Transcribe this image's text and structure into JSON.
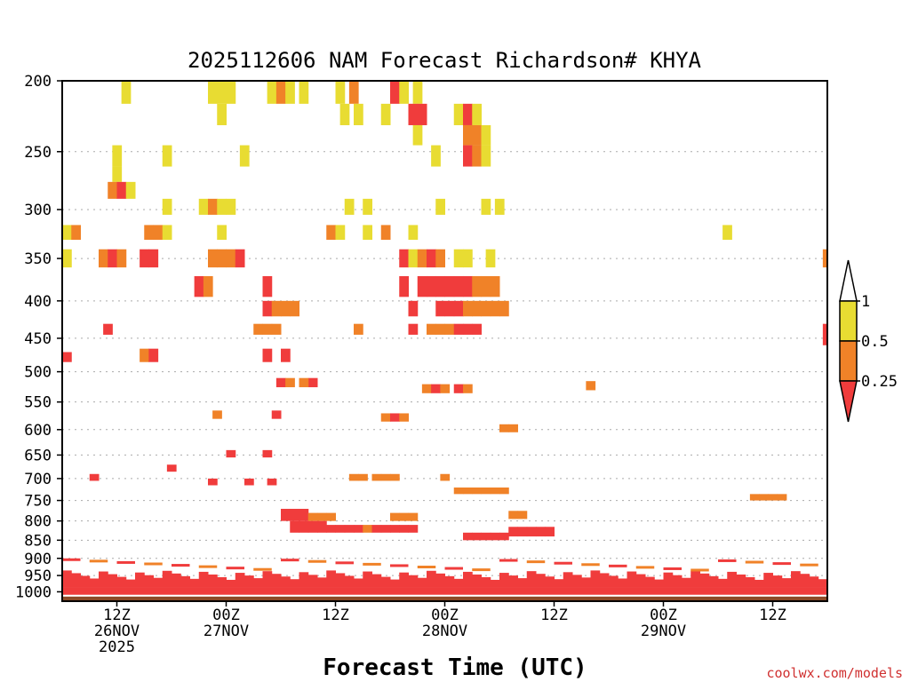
{
  "chart_data": {
    "type": "heatmap",
    "title": "2025112606 NAM Forecast Richardson# KHYA",
    "xlabel": "Forecast Time (UTC)",
    "ylabel": "",
    "y_scale": "log-pressure",
    "ylim": [
      1030,
      200
    ],
    "y_ticks": [
      200,
      250,
      300,
      350,
      400,
      450,
      500,
      550,
      600,
      650,
      700,
      750,
      800,
      850,
      900,
      950,
      1000
    ],
    "y_tick_labels": [
      "200",
      "250",
      "300",
      "350",
      "400",
      "450",
      "500",
      "550",
      "600",
      "650",
      "700",
      "750",
      "800",
      "850",
      "900",
      "950",
      "1000"
    ],
    "xlim": [
      0,
      84
    ],
    "x_ticks": [
      {
        "hour": 6,
        "lines": [
          "12Z",
          "26NOV",
          "2025"
        ]
      },
      {
        "hour": 18,
        "lines": [
          "00Z",
          "27NOV"
        ]
      },
      {
        "hour": 30,
        "lines": [
          "12Z"
        ]
      },
      {
        "hour": 42,
        "lines": [
          "00Z",
          "28NOV"
        ]
      },
      {
        "hour": 54,
        "lines": [
          "12Z"
        ]
      },
      {
        "hour": 66,
        "lines": [
          "00Z",
          "29NOV"
        ]
      },
      {
        "hour": 78,
        "lines": [
          "12Z"
        ]
      }
    ],
    "legend": {
      "position": "right",
      "labels": [
        "1",
        "0.5",
        "0.25"
      ],
      "bins": [
        {
          "range": "0.5 - 1",
          "color": "#e8dc32"
        },
        {
          "range": "0.25 - 0.5",
          "color": "#f08228"
        },
        {
          "range": "< 0.25",
          "color": "#f03c3c"
        }
      ]
    },
    "colors": {
      "yellow": "#e8dc32",
      "orange": "#f08228",
      "red": "#f03c3c",
      "ground": "#8c4a28"
    },
    "surface_pressure": 1015,
    "cells_legend": "each cell = [forecast hour start, pressure top hPa, pressure bottom hPa, class] ; class: y = 0.5-1, o = 0.25-0.5, r = <0.25",
    "cells": [
      [
        6.5,
        200,
        215,
        "y"
      ],
      [
        16,
        200,
        215,
        "y"
      ],
      [
        17,
        200,
        215,
        "y"
      ],
      [
        18,
        200,
        215,
        "y"
      ],
      [
        22.5,
        200,
        215,
        "y"
      ],
      [
        23.5,
        200,
        215,
        "o"
      ],
      [
        24.5,
        200,
        215,
        "y"
      ],
      [
        26,
        200,
        215,
        "y"
      ],
      [
        30,
        200,
        215,
        "y"
      ],
      [
        31.5,
        200,
        215,
        "o"
      ],
      [
        36,
        200,
        215,
        "r"
      ],
      [
        37,
        200,
        215,
        "y"
      ],
      [
        38.5,
        200,
        215,
        "y"
      ],
      [
        17,
        215,
        230,
        "y"
      ],
      [
        30.5,
        215,
        230,
        "y"
      ],
      [
        32,
        215,
        230,
        "y"
      ],
      [
        35,
        215,
        230,
        "y"
      ],
      [
        38,
        215,
        230,
        "r"
      ],
      [
        39,
        215,
        230,
        "r"
      ],
      [
        43,
        215,
        230,
        "y"
      ],
      [
        44,
        215,
        230,
        "r"
      ],
      [
        45,
        215,
        230,
        "y"
      ],
      [
        38.5,
        230,
        245,
        "y"
      ],
      [
        44,
        230,
        245,
        "o"
      ],
      [
        45,
        230,
        245,
        "o"
      ],
      [
        46,
        230,
        245,
        "y"
      ],
      [
        5.5,
        245,
        262,
        "y"
      ],
      [
        11,
        245,
        262,
        "y"
      ],
      [
        19.5,
        245,
        262,
        "y"
      ],
      [
        40.5,
        245,
        262,
        "y"
      ],
      [
        44,
        245,
        262,
        "r"
      ],
      [
        45,
        245,
        262,
        "o"
      ],
      [
        46,
        245,
        262,
        "y"
      ],
      [
        5.5,
        262,
        275,
        "y"
      ],
      [
        5,
        275,
        290,
        "o"
      ],
      [
        6,
        275,
        290,
        "r"
      ],
      [
        7,
        275,
        290,
        "y"
      ],
      [
        15,
        290,
        305,
        "y"
      ],
      [
        16,
        290,
        305,
        "o"
      ],
      [
        17,
        290,
        305,
        "y"
      ],
      [
        18,
        290,
        305,
        "y"
      ],
      [
        11,
        290,
        305,
        "y"
      ],
      [
        31,
        290,
        305,
        "y"
      ],
      [
        33,
        290,
        305,
        "y"
      ],
      [
        41,
        290,
        305,
        "y"
      ],
      [
        46,
        290,
        305,
        "y"
      ],
      [
        47.5,
        290,
        305,
        "y"
      ],
      [
        0,
        315,
        330,
        "y"
      ],
      [
        1,
        315,
        330,
        "o"
      ],
      [
        9,
        315,
        330,
        "o"
      ],
      [
        10,
        315,
        330,
        "o"
      ],
      [
        11,
        315,
        330,
        "y"
      ],
      [
        17,
        315,
        330,
        "y"
      ],
      [
        29,
        315,
        330,
        "o"
      ],
      [
        30,
        315,
        330,
        "y"
      ],
      [
        33,
        315,
        330,
        "y"
      ],
      [
        35,
        315,
        330,
        "o"
      ],
      [
        38,
        315,
        330,
        "y"
      ],
      [
        72.5,
        315,
        330,
        "y"
      ],
      [
        0,
        340,
        360,
        "y"
      ],
      [
        4,
        340,
        360,
        "o"
      ],
      [
        5,
        340,
        360,
        "r"
      ],
      [
        6,
        340,
        360,
        "o"
      ],
      [
        8.5,
        340,
        360,
        "r"
      ],
      [
        9.5,
        340,
        360,
        "r"
      ],
      [
        16,
        340,
        360,
        "o"
      ],
      [
        17,
        340,
        360,
        "o"
      ],
      [
        18,
        340,
        360,
        "o"
      ],
      [
        19,
        340,
        360,
        "r"
      ],
      [
        37,
        340,
        360,
        "r"
      ],
      [
        38,
        340,
        360,
        "y"
      ],
      [
        39,
        340,
        360,
        "o"
      ],
      [
        40,
        340,
        360,
        "r"
      ],
      [
        41,
        340,
        360,
        "o"
      ],
      [
        43,
        340,
        360,
        "y"
      ],
      [
        44,
        340,
        360,
        "y"
      ],
      [
        46.5,
        340,
        360,
        "y"
      ],
      [
        83.5,
        340,
        360,
        "o"
      ],
      [
        14.5,
        370,
        395,
        "r"
      ],
      [
        15.5,
        370,
        395,
        "o"
      ],
      [
        22,
        370,
        395,
        "r"
      ],
      [
        37,
        370,
        395,
        "r"
      ],
      [
        39,
        370,
        395,
        "r"
      ],
      [
        40,
        370,
        395,
        "r"
      ],
      [
        41,
        370,
        395,
        "r"
      ],
      [
        42,
        370,
        395,
        "r"
      ],
      [
        43,
        370,
        395,
        "r"
      ],
      [
        44,
        370,
        395,
        "r"
      ],
      [
        45,
        370,
        395,
        "o"
      ],
      [
        46,
        370,
        395,
        "o"
      ],
      [
        47,
        370,
        395,
        "o"
      ],
      [
        22,
        400,
        420,
        "r"
      ],
      [
        23,
        400,
        420,
        "o"
      ],
      [
        24,
        400,
        420,
        "o"
      ],
      [
        25,
        400,
        420,
        "o"
      ],
      [
        38,
        400,
        420,
        "r"
      ],
      [
        41,
        400,
        420,
        "r"
      ],
      [
        42,
        400,
        420,
        "r"
      ],
      [
        43,
        400,
        420,
        "r"
      ],
      [
        44,
        400,
        420,
        "o"
      ],
      [
        45,
        400,
        420,
        "o"
      ],
      [
        46,
        400,
        420,
        "o"
      ],
      [
        47,
        400,
        420,
        "o"
      ],
      [
        48,
        400,
        420,
        "o"
      ],
      [
        4.5,
        430,
        445,
        "r"
      ],
      [
        21,
        430,
        445,
        "o"
      ],
      [
        22,
        430,
        445,
        "o"
      ],
      [
        23,
        430,
        445,
        "o"
      ],
      [
        32,
        430,
        445,
        "o"
      ],
      [
        38,
        430,
        445,
        "r"
      ],
      [
        40,
        430,
        445,
        "o"
      ],
      [
        41,
        430,
        445,
        "o"
      ],
      [
        42,
        430,
        445,
        "o"
      ],
      [
        43,
        430,
        445,
        "r"
      ],
      [
        44,
        430,
        445,
        "r"
      ],
      [
        45,
        430,
        445,
        "r"
      ],
      [
        8.5,
        465,
        485,
        "o"
      ],
      [
        9.5,
        465,
        485,
        "r"
      ],
      [
        22,
        465,
        485,
        "r"
      ],
      [
        24,
        465,
        485,
        "r"
      ],
      [
        0,
        470,
        485,
        "r"
      ],
      [
        83.5,
        430,
        460,
        "r"
      ],
      [
        27,
        510,
        525,
        "r"
      ],
      [
        26,
        510,
        525,
        "o"
      ],
      [
        23.5,
        510,
        525,
        "r"
      ],
      [
        24.5,
        510,
        525,
        "o"
      ],
      [
        39.5,
        520,
        535,
        "o"
      ],
      [
        40.5,
        520,
        535,
        "r"
      ],
      [
        41.5,
        520,
        535,
        "o"
      ],
      [
        43,
        520,
        535,
        "r"
      ],
      [
        44,
        520,
        535,
        "o"
      ],
      [
        57.5,
        515,
        530,
        "o"
      ],
      [
        35,
        570,
        585,
        "o"
      ],
      [
        36,
        570,
        585,
        "r"
      ],
      [
        37,
        570,
        585,
        "o"
      ],
      [
        16.5,
        565,
        580,
        "o"
      ],
      [
        23,
        565,
        580,
        "r"
      ],
      [
        48,
        590,
        605,
        "o"
      ],
      [
        49,
        590,
        605,
        "o"
      ],
      [
        18,
        640,
        655,
        "r"
      ],
      [
        22,
        640,
        655,
        "r"
      ],
      [
        3,
        690,
        705,
        "r"
      ],
      [
        11.5,
        670,
        685,
        "r"
      ],
      [
        22.5,
        700,
        715,
        "r"
      ],
      [
        16,
        700,
        715,
        "r"
      ],
      [
        20,
        700,
        715,
        "r"
      ],
      [
        31.5,
        690,
        705,
        "o"
      ],
      [
        32.5,
        690,
        705,
        "o"
      ],
      [
        34,
        690,
        705,
        "o"
      ],
      [
        35,
        690,
        705,
        "o"
      ],
      [
        36,
        690,
        705,
        "o"
      ],
      [
        41.5,
        690,
        705,
        "o"
      ],
      [
        43,
        720,
        735,
        "o"
      ],
      [
        44,
        720,
        735,
        "o"
      ],
      [
        45,
        720,
        735,
        "o"
      ],
      [
        46,
        720,
        735,
        "o"
      ],
      [
        47,
        720,
        735,
        "o"
      ],
      [
        48,
        720,
        735,
        "o"
      ],
      [
        75.5,
        735,
        750,
        "o"
      ],
      [
        76.5,
        735,
        750,
        "o"
      ],
      [
        77.5,
        735,
        750,
        "o"
      ],
      [
        78.5,
        735,
        750,
        "o"
      ],
      [
        24,
        770,
        800,
        "r"
      ],
      [
        25,
        770,
        800,
        "r"
      ],
      [
        26,
        770,
        800,
        "r"
      ],
      [
        27,
        780,
        800,
        "o"
      ],
      [
        28,
        780,
        800,
        "o"
      ],
      [
        29,
        780,
        800,
        "o"
      ],
      [
        36,
        780,
        800,
        "o"
      ],
      [
        37,
        780,
        800,
        "o"
      ],
      [
        38,
        780,
        800,
        "o"
      ],
      [
        49,
        775,
        795,
        "o"
      ],
      [
        50,
        775,
        795,
        "o"
      ],
      [
        25,
        800,
        830,
        "r"
      ],
      [
        26,
        800,
        830,
        "r"
      ],
      [
        27,
        800,
        830,
        "r"
      ],
      [
        28,
        800,
        830,
        "r"
      ],
      [
        29,
        810,
        830,
        "r"
      ],
      [
        30,
        810,
        830,
        "r"
      ],
      [
        31,
        810,
        830,
        "r"
      ],
      [
        32,
        810,
        830,
        "r"
      ],
      [
        33,
        810,
        830,
        "o"
      ],
      [
        34,
        810,
        830,
        "r"
      ],
      [
        35,
        810,
        830,
        "r"
      ],
      [
        36,
        810,
        830,
        "r"
      ],
      [
        37,
        810,
        830,
        "r"
      ],
      [
        38,
        810,
        830,
        "r"
      ],
      [
        49,
        815,
        840,
        "r"
      ],
      [
        50,
        815,
        840,
        "r"
      ],
      [
        51,
        815,
        840,
        "r"
      ],
      [
        52,
        815,
        840,
        "r"
      ],
      [
        53,
        815,
        840,
        "r"
      ],
      [
        44,
        830,
        850,
        "r"
      ],
      [
        45,
        830,
        850,
        "r"
      ],
      [
        46,
        830,
        850,
        "r"
      ],
      [
        47,
        830,
        850,
        "r"
      ],
      [
        48,
        830,
        850,
        "r"
      ]
    ]
  },
  "footer": {
    "credit": "coolwx.com/models"
  }
}
